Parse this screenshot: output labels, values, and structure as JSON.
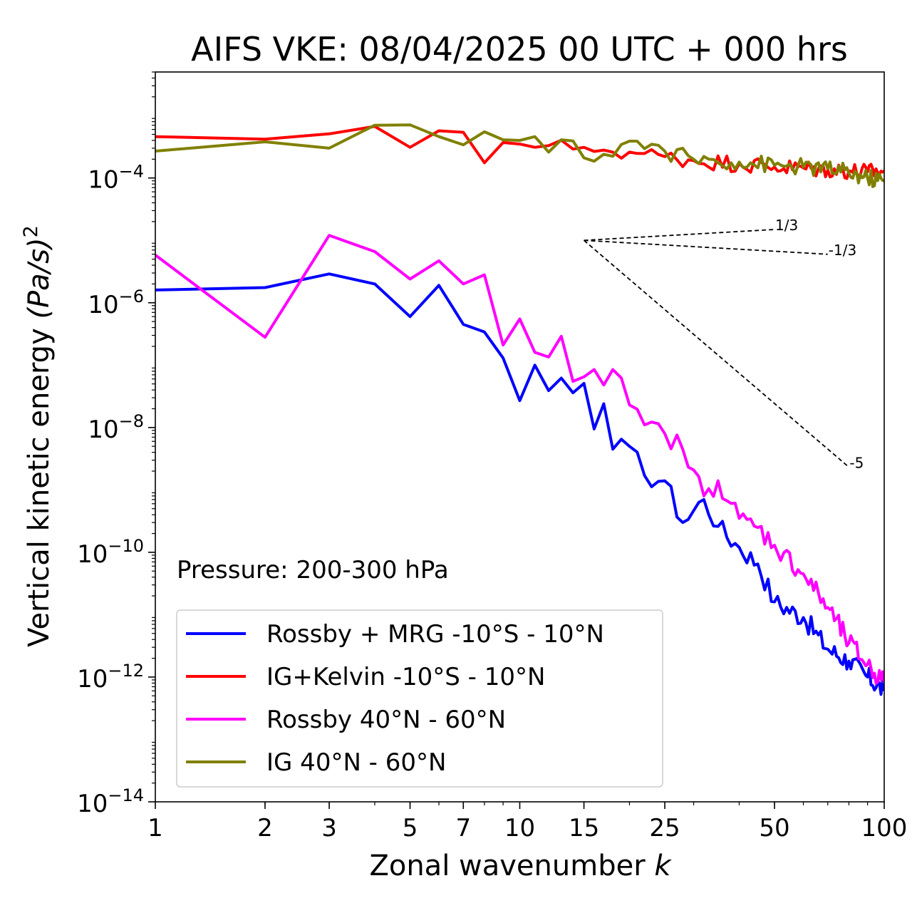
{
  "chart_data": {
    "type": "line",
    "title": "AIFS VKE: 08/04/2025 00 UTC + 000 hrs",
    "xlabel": "Zonal wavenumber",
    "xlabel_var": "k",
    "ylabel": "Vertical kinetic energy",
    "ylabel_units": "(Pa/s)",
    "ylabel_power": "2",
    "xscale": "log",
    "yscale": "log",
    "xlim": [
      1,
      100
    ],
    "ylim": [
      1e-14,
      0.005
    ],
    "xticks": [
      1,
      2,
      3,
      5,
      7,
      10,
      15,
      25,
      50,
      100
    ],
    "xtick_labels": [
      "1",
      "2",
      "3",
      "5",
      "7",
      "10",
      "15",
      "25",
      "50",
      "100"
    ],
    "yticks": [
      -4,
      -6,
      -8,
      -10,
      -12,
      -14
    ],
    "ytick_base": "10",
    "ytick_exponents": [
      "−4",
      "−6",
      "−8",
      "−10",
      "−12",
      "−14"
    ],
    "grid": false,
    "legend_position": "lower-left",
    "annotation": "Pressure: 200-300 hPa",
    "reference_slopes": {
      "origin": [
        15,
        1e-05
      ],
      "lines": [
        {
          "label": "1/3",
          "slope": 0.3333,
          "end_x": 50
        },
        {
          "label": "-1/3",
          "slope": -0.3333,
          "end_x": 70
        },
        {
          "label": "-5",
          "slope": -5,
          "end_x": 80
        }
      ]
    },
    "series": [
      {
        "name": "Rossby + MRG -10°S - 10°N",
        "color": "#0000ff",
        "anchors": [
          [
            1,
            1.6e-06
          ],
          [
            2,
            1.75e-06
          ],
          [
            3,
            2.9e-06
          ],
          [
            4,
            2e-06
          ],
          [
            5,
            6e-07
          ],
          [
            6,
            1.9e-06
          ],
          [
            7,
            4.5e-07
          ],
          [
            8,
            3.4e-07
          ],
          [
            9,
            1.3e-07
          ],
          [
            10,
            2.7e-08
          ],
          [
            11,
            1e-07
          ],
          [
            12,
            3.9e-08
          ],
          [
            13,
            6.2e-08
          ],
          [
            14,
            3.6e-08
          ],
          [
            15,
            5.1e-08
          ],
          [
            16,
            9.5e-09
          ],
          [
            17,
            2.4e-08
          ],
          [
            18,
            4.5e-09
          ],
          [
            20,
            5e-09
          ],
          [
            22,
            1.7e-09
          ],
          [
            25,
            1.4e-09
          ],
          [
            28,
            3e-10
          ],
          [
            32,
            7e-10
          ],
          [
            35,
            2.6e-10
          ],
          [
            40,
            1.2e-10
          ],
          [
            45,
            6.5e-11
          ],
          [
            50,
            1.6e-11
          ],
          [
            60,
            9e-12
          ],
          [
            70,
            2.8e-12
          ],
          [
            80,
            1.8e-12
          ],
          [
            90,
            1e-12
          ],
          [
            100,
            6e-13
          ]
        ],
        "noise": 0.35
      },
      {
        "name": "IG+Kelvin -10°S - 10°N",
        "color": "#ff0000",
        "anchors": [
          [
            1,
            0.00046
          ],
          [
            2,
            0.00042
          ],
          [
            3,
            0.00051
          ],
          [
            4,
            0.00067
          ],
          [
            5,
            0.00031
          ],
          [
            6,
            0.00057
          ],
          [
            7,
            0.00054
          ],
          [
            8,
            0.000175
          ],
          [
            9,
            0.00037
          ],
          [
            10,
            0.00035
          ],
          [
            11,
            0.00031
          ],
          [
            12,
            0.00033
          ],
          [
            14,
            0.00029
          ],
          [
            15,
            0.00031
          ],
          [
            17,
            0.00028
          ],
          [
            20,
            0.00026
          ],
          [
            25,
            0.00022
          ],
          [
            30,
            0.00019
          ],
          [
            40,
            0.00017
          ],
          [
            50,
            0.00015
          ],
          [
            60,
            0.000145
          ],
          [
            70,
            0.000135
          ],
          [
            80,
            0.00013
          ],
          [
            90,
            0.000125
          ],
          [
            100,
            0.00013
          ]
        ],
        "noise": 0.28
      },
      {
        "name": "Rossby 40°N - 60°N",
        "color": "#ff00ff",
        "anchors": [
          [
            1,
            5.8e-06
          ],
          [
            2,
            2.8e-07
          ],
          [
            3,
            1.2e-05
          ],
          [
            4,
            6.6e-06
          ],
          [
            5,
            2.4e-06
          ],
          [
            6,
            4.7e-06
          ],
          [
            7,
            2e-06
          ],
          [
            8,
            2.8e-06
          ],
          [
            9,
            2.1e-07
          ],
          [
            10,
            5.5e-07
          ],
          [
            11,
            1.6e-07
          ],
          [
            12,
            1.35e-07
          ],
          [
            13,
            2.9e-07
          ],
          [
            14,
            5.5e-08
          ],
          [
            15,
            6.5e-08
          ],
          [
            16,
            8.5e-08
          ],
          [
            17,
            4.8e-08
          ],
          [
            18,
            8.5e-08
          ],
          [
            20,
            2.3e-08
          ],
          [
            22,
            1.1e-08
          ],
          [
            25,
            8e-09
          ],
          [
            28,
            4.5e-09
          ],
          [
            32,
            8e-10
          ],
          [
            35,
            1.4e-09
          ],
          [
            40,
            3.5e-10
          ],
          [
            45,
            2.5e-10
          ],
          [
            50,
            1.3e-10
          ],
          [
            60,
            4.5e-11
          ],
          [
            70,
            1.3e-11
          ],
          [
            80,
            3.5e-12
          ],
          [
            90,
            1.6e-12
          ],
          [
            100,
            8e-13
          ]
        ],
        "noise": 0.35
      },
      {
        "name": "IG 40°N - 60°N",
        "color": "#808000",
        "anchors": [
          [
            1,
            0.00027
          ],
          [
            2,
            0.00038
          ],
          [
            3,
            0.0003
          ],
          [
            4,
            0.0007
          ],
          [
            5,
            0.00071
          ],
          [
            6,
            0.00046
          ],
          [
            7,
            0.00034
          ],
          [
            8,
            0.00055
          ],
          [
            9,
            0.00041
          ],
          [
            10,
            0.0004
          ],
          [
            11,
            0.00046
          ],
          [
            12,
            0.00026
          ],
          [
            13,
            0.00041
          ],
          [
            15,
            0.00021
          ],
          [
            17,
            0.00024
          ],
          [
            20,
            0.00039
          ],
          [
            25,
            0.00027
          ],
          [
            30,
            0.0002
          ],
          [
            40,
            0.00018
          ],
          [
            50,
            0.00016
          ],
          [
            60,
            0.00015
          ],
          [
            70,
            0.00014
          ],
          [
            80,
            0.00012
          ],
          [
            90,
            0.0001
          ],
          [
            100,
            9e-05
          ]
        ],
        "noise": 0.28
      }
    ]
  }
}
